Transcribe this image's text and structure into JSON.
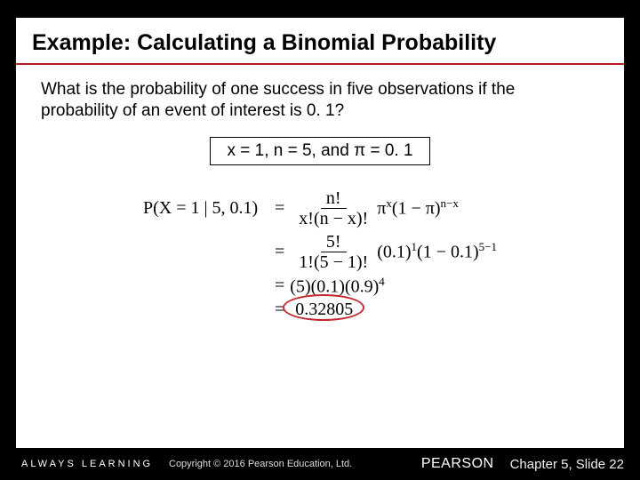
{
  "title": "Example: Calculating a Binomial Probability",
  "question": "What is the probability of one success in five observations if the probability of an event of interest is 0. 1?",
  "params": "x = 1, n = 5, and π = 0. 1",
  "formula": {
    "lhs": "P(X = 1 | 5, 0.1)",
    "line1_num": "n!",
    "line1_den": "x!(n − x)!",
    "line1_rest_a": "π",
    "line1_exp_a": "x",
    "line1_rest_b": "(1 − π)",
    "line1_exp_b": "n−x",
    "line2_num": "5!",
    "line2_den": "1!(5 − 1)!",
    "line2_rest_a": "(0.1)",
    "line2_exp_a": "1",
    "line2_rest_b": "(1 − 0.1)",
    "line2_exp_b": "5−1",
    "line3": "(5)(0.1)(0.9)",
    "line3_exp": "4",
    "result": "0.32805"
  },
  "footer": {
    "always": "ALWAYS LEARNING",
    "copyright": "Copyright © 2016 Pearson Education, Ltd.",
    "brand": "PEARSON",
    "chapter": "Chapter 5, Slide 22"
  },
  "colors": {
    "title_rule": "#b02020",
    "circle": "#c3262e",
    "bg": "#000000",
    "slide_bg": "#ffffff"
  }
}
